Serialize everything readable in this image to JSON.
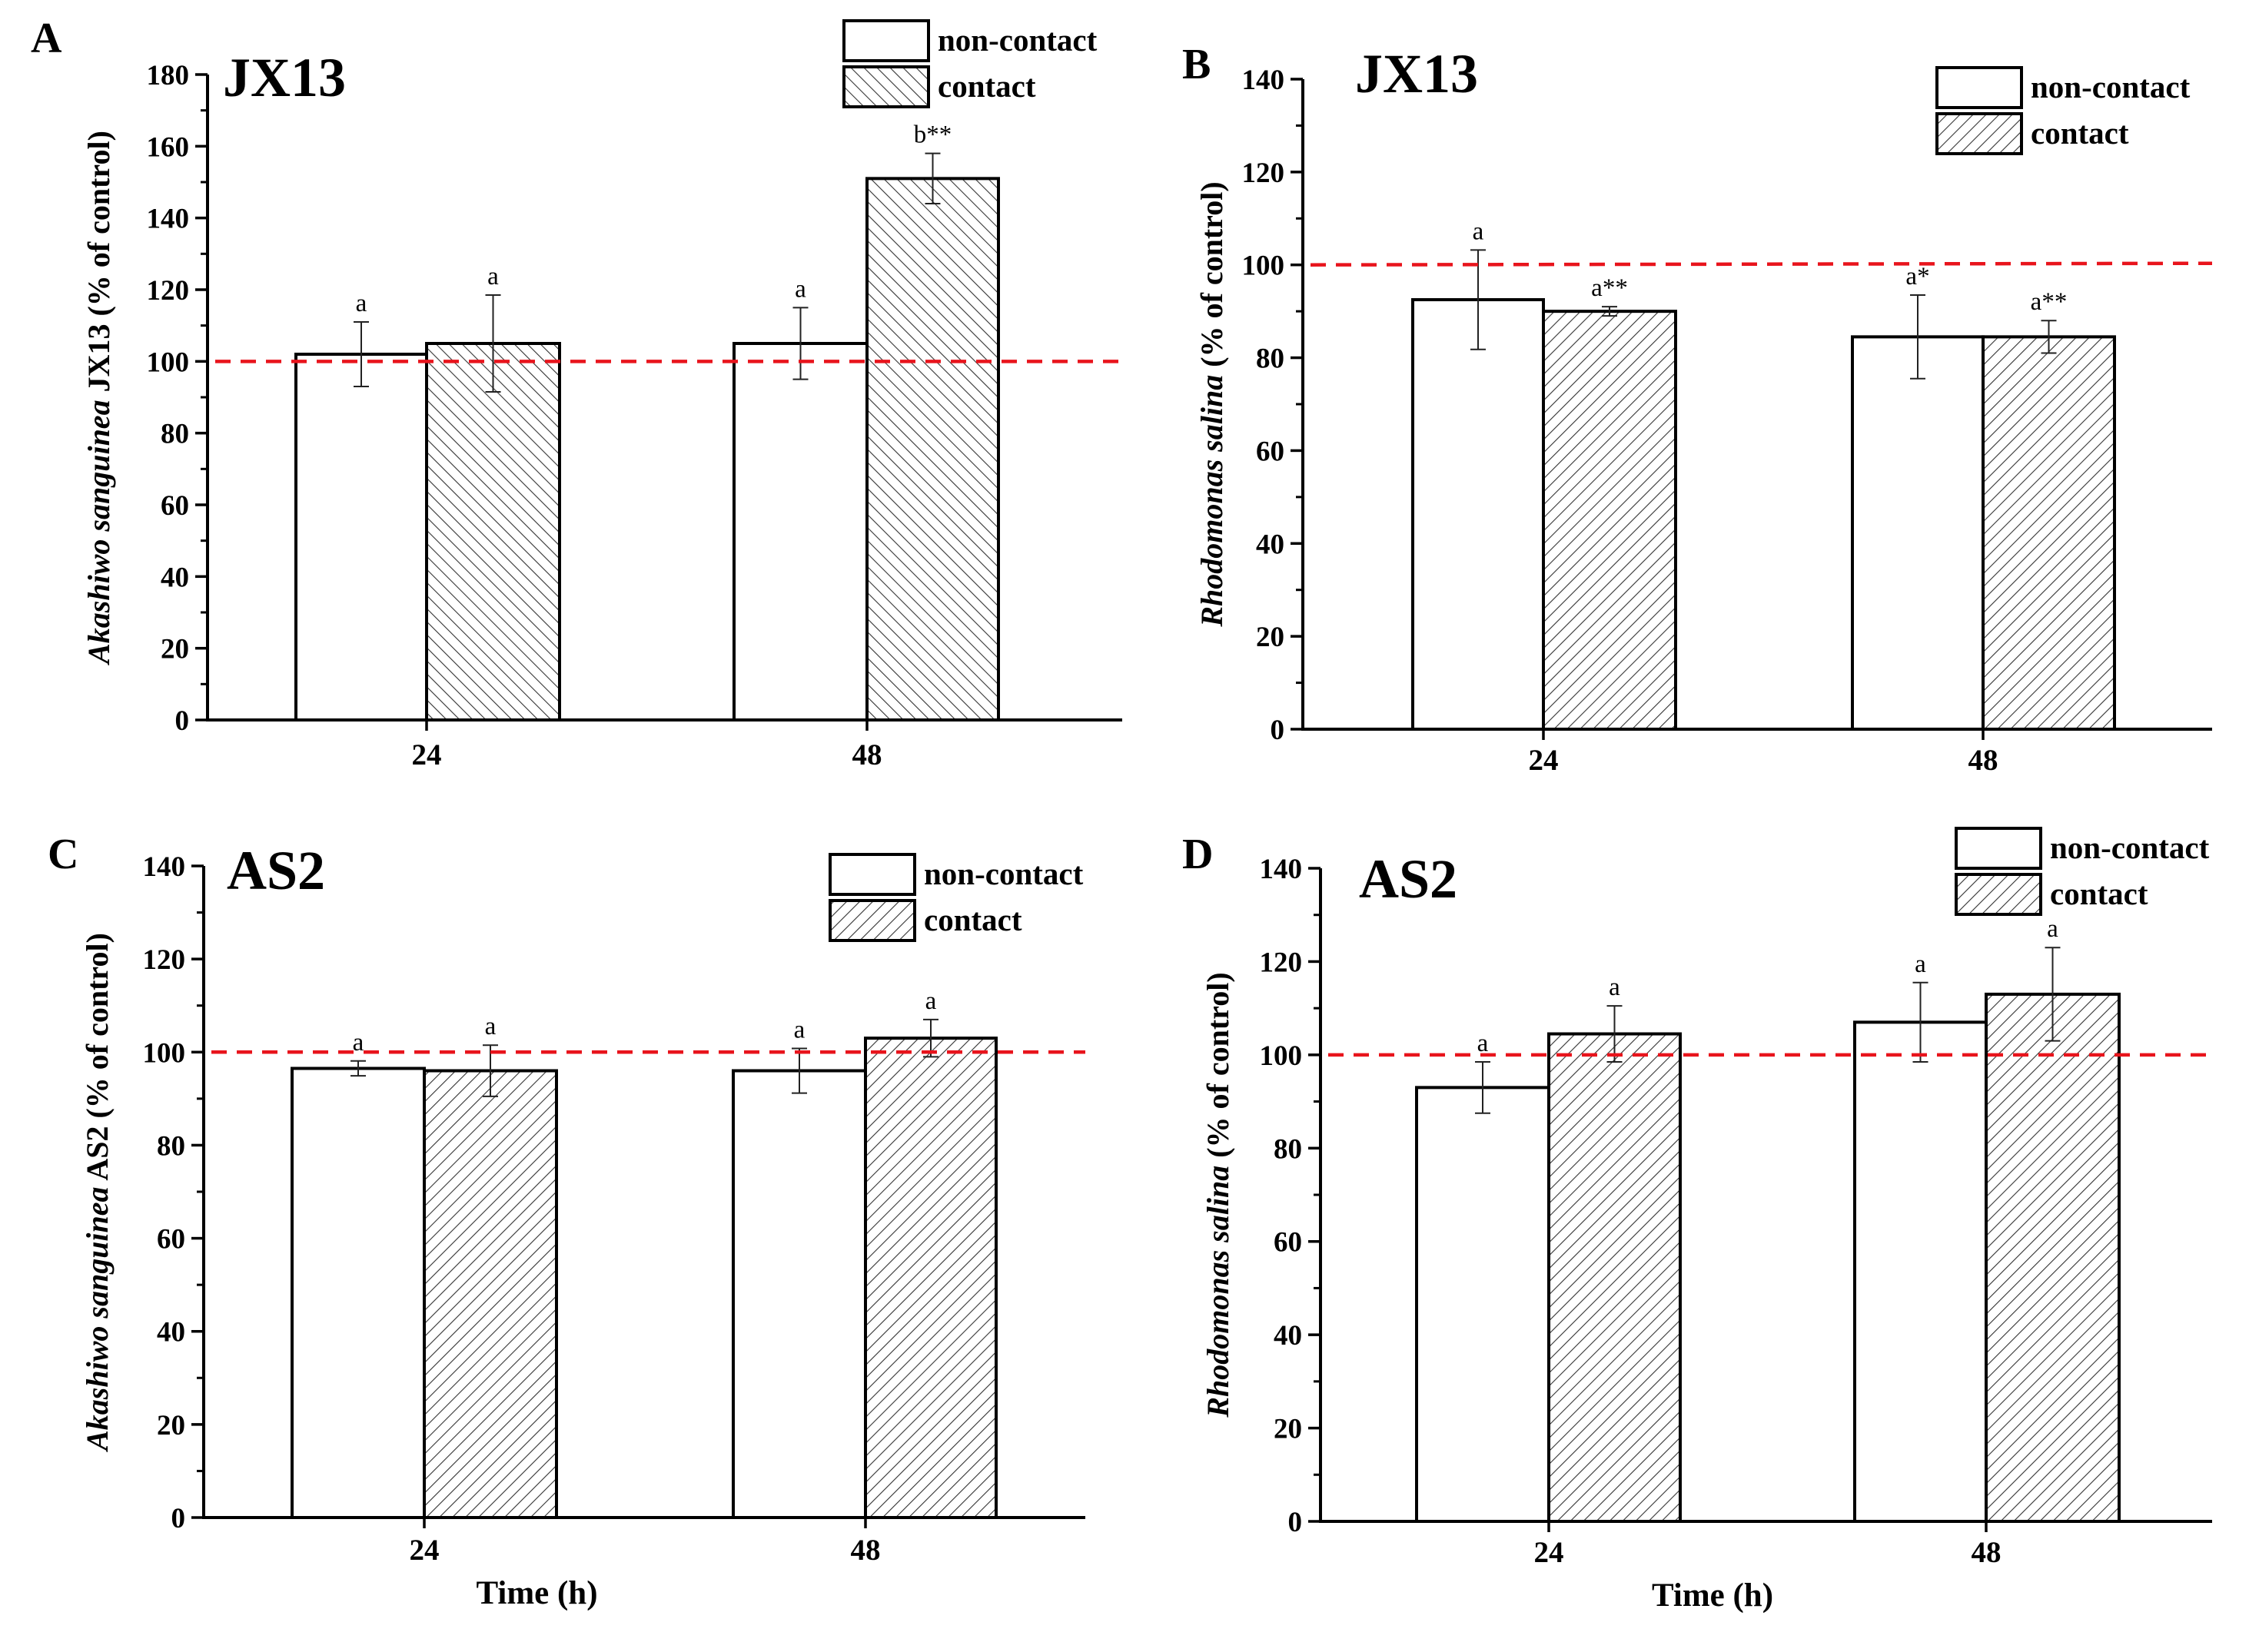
{
  "figure": {
    "x_axis_title": "Time (h)"
  },
  "chart_data": [
    {
      "panel": "A",
      "type": "bar",
      "title": "JX13",
      "ylabel_italic": "Akashiwo sanguinea",
      "ylabel_rest": " JX13 (% of control)",
      "xlabel": "",
      "categories": [
        "24",
        "48"
      ],
      "ylim": [
        0,
        180
      ],
      "ytick_step": 20,
      "reference_line": 100,
      "legend": [
        "non-contact",
        "contact"
      ],
      "series": [
        {
          "name": "non-contact",
          "values": [
            102,
            105
          ],
          "errors": [
            9,
            10
          ],
          "labels": [
            "a",
            "a"
          ]
        },
        {
          "name": "contact",
          "values": [
            105,
            151
          ],
          "errors": [
            13.5,
            7
          ],
          "labels": [
            "a",
            "b**"
          ]
        }
      ]
    },
    {
      "panel": "B",
      "type": "bar",
      "title": "JX13",
      "ylabel_italic": "Rhodomonas salina",
      "ylabel_rest": " (% of control)",
      "xlabel": "",
      "categories": [
        "24",
        "48"
      ],
      "ylim": [
        0,
        140
      ],
      "ytick_step": 20,
      "reference_line": 100,
      "legend": [
        "non-contact",
        "contact"
      ],
      "series": [
        {
          "name": "non-contact",
          "values": [
            92.5,
            84.5
          ],
          "errors": [
            10.7,
            9
          ],
          "labels": [
            "a",
            "a*"
          ]
        },
        {
          "name": "contact",
          "values": [
            90,
            84.5
          ],
          "errors": [
            1,
            3.5
          ],
          "labels": [
            "a**",
            "a**"
          ]
        }
      ]
    },
    {
      "panel": "C",
      "type": "bar",
      "title": "AS2",
      "ylabel_italic": "Akashiwo sanguinea",
      "ylabel_rest": " AS2 (% of control)",
      "xlabel": "Time (h)",
      "categories": [
        "24",
        "48"
      ],
      "ylim": [
        0,
        140
      ],
      "ytick_step": 20,
      "reference_line": 100,
      "legend": [
        "non-contact",
        "contact"
      ],
      "series": [
        {
          "name": "non-contact",
          "values": [
            96.5,
            96
          ],
          "errors": [
            1.6,
            4.8
          ],
          "labels": [
            "a",
            "a"
          ]
        },
        {
          "name": "contact",
          "values": [
            96,
            103
          ],
          "errors": [
            5.5,
            4
          ],
          "labels": [
            "a",
            "a"
          ]
        }
      ]
    },
    {
      "panel": "D",
      "type": "bar",
      "title": "AS2",
      "ylabel_italic": "Rhodomonas salina",
      "ylabel_rest": " (% of control)",
      "xlabel": "Time (h)",
      "categories": [
        "24",
        "48"
      ],
      "ylim": [
        0,
        140
      ],
      "ytick_step": 20,
      "reference_line": 100,
      "legend": [
        "non-contact",
        "contact"
      ],
      "series": [
        {
          "name": "non-contact",
          "values": [
            93,
            107
          ],
          "errors": [
            5.5,
            8.5
          ],
          "labels": [
            "a",
            "a"
          ]
        },
        {
          "name": "contact",
          "values": [
            104.5,
            113
          ],
          "errors": [
            6,
            10
          ],
          "labels": [
            "a",
            "a"
          ]
        }
      ]
    }
  ]
}
